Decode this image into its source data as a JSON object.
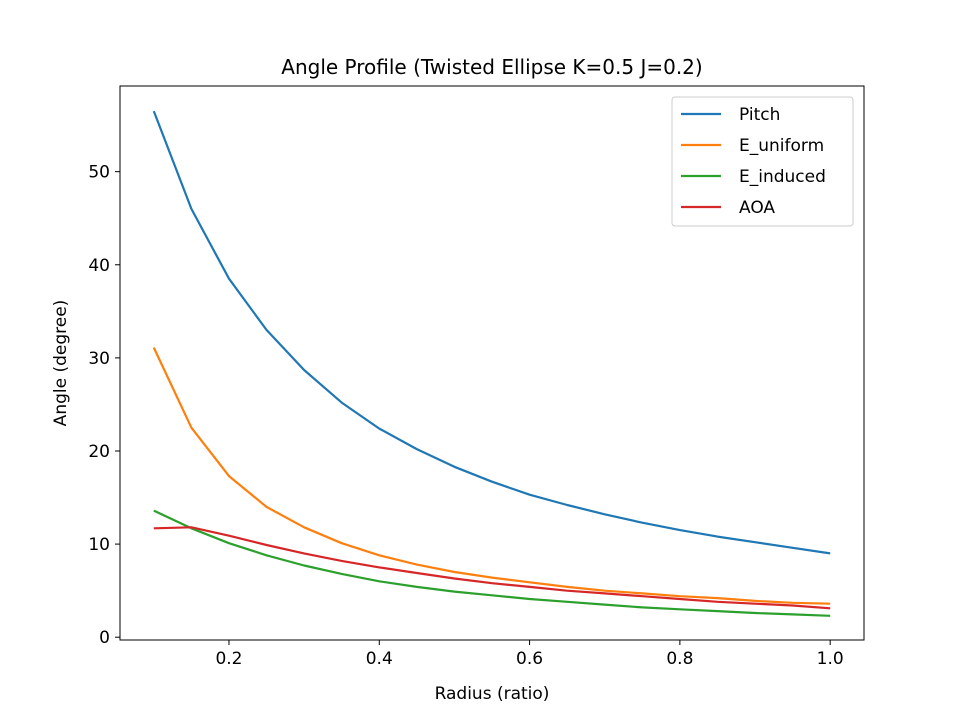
{
  "chart_data": {
    "type": "line",
    "title": "Angle Profile (Twisted Ellipse K=0.5 J=0.2)",
    "xlabel": "Radius (ratio)",
    "ylabel": "Angle (degree)",
    "xlim": [
      0.055,
      1.045
    ],
    "ylim": [
      -0.3,
      59.2
    ],
    "xticks": [
      0.2,
      0.4,
      0.6,
      0.8,
      1.0
    ],
    "xtick_labels": [
      "0.2",
      "0.4",
      "0.6",
      "0.8",
      "1.0"
    ],
    "yticks": [
      0,
      10,
      20,
      30,
      40,
      50
    ],
    "ytick_labels": [
      "0",
      "10",
      "20",
      "30",
      "40",
      "50"
    ],
    "grid": false,
    "legend_placement": "top-right",
    "x": [
      0.1,
      0.15,
      0.2,
      0.25,
      0.3,
      0.35,
      0.4,
      0.45,
      0.5,
      0.55,
      0.6,
      0.65,
      0.7,
      0.75,
      0.8,
      0.85,
      0.9,
      0.95,
      1.0
    ],
    "series": [
      {
        "name": "Pitch",
        "color": "#1f77b4",
        "values": [
          56.5,
          46,
          38.5,
          33,
          28.7,
          25.2,
          22.4,
          20.2,
          18.3,
          16.7,
          15.3,
          14.2,
          13.2,
          12.3,
          11.5,
          10.8,
          10.2,
          9.6,
          9.0
        ]
      },
      {
        "name": "E_uniform",
        "color": "#ff7f0e",
        "values": [
          31.1,
          22.5,
          17.3,
          14.0,
          11.8,
          10.1,
          8.8,
          7.8,
          7.0,
          6.4,
          5.9,
          5.4,
          5.0,
          4.7,
          4.4,
          4.2,
          3.9,
          3.7,
          3.6
        ]
      },
      {
        "name": "E_induced",
        "color": "#2ca02c",
        "values": [
          13.6,
          11.7,
          10.1,
          8.8,
          7.7,
          6.8,
          6.0,
          5.4,
          4.9,
          4.5,
          4.1,
          3.8,
          3.5,
          3.2,
          3.0,
          2.8,
          2.6,
          2.45,
          2.3
        ]
      },
      {
        "name": "AOA",
        "color": "#d62728",
        "values": [
          11.7,
          11.8,
          10.9,
          9.9,
          9.0,
          8.2,
          7.5,
          6.9,
          6.3,
          5.8,
          5.4,
          5.0,
          4.7,
          4.4,
          4.1,
          3.8,
          3.6,
          3.4,
          3.1
        ]
      }
    ]
  }
}
